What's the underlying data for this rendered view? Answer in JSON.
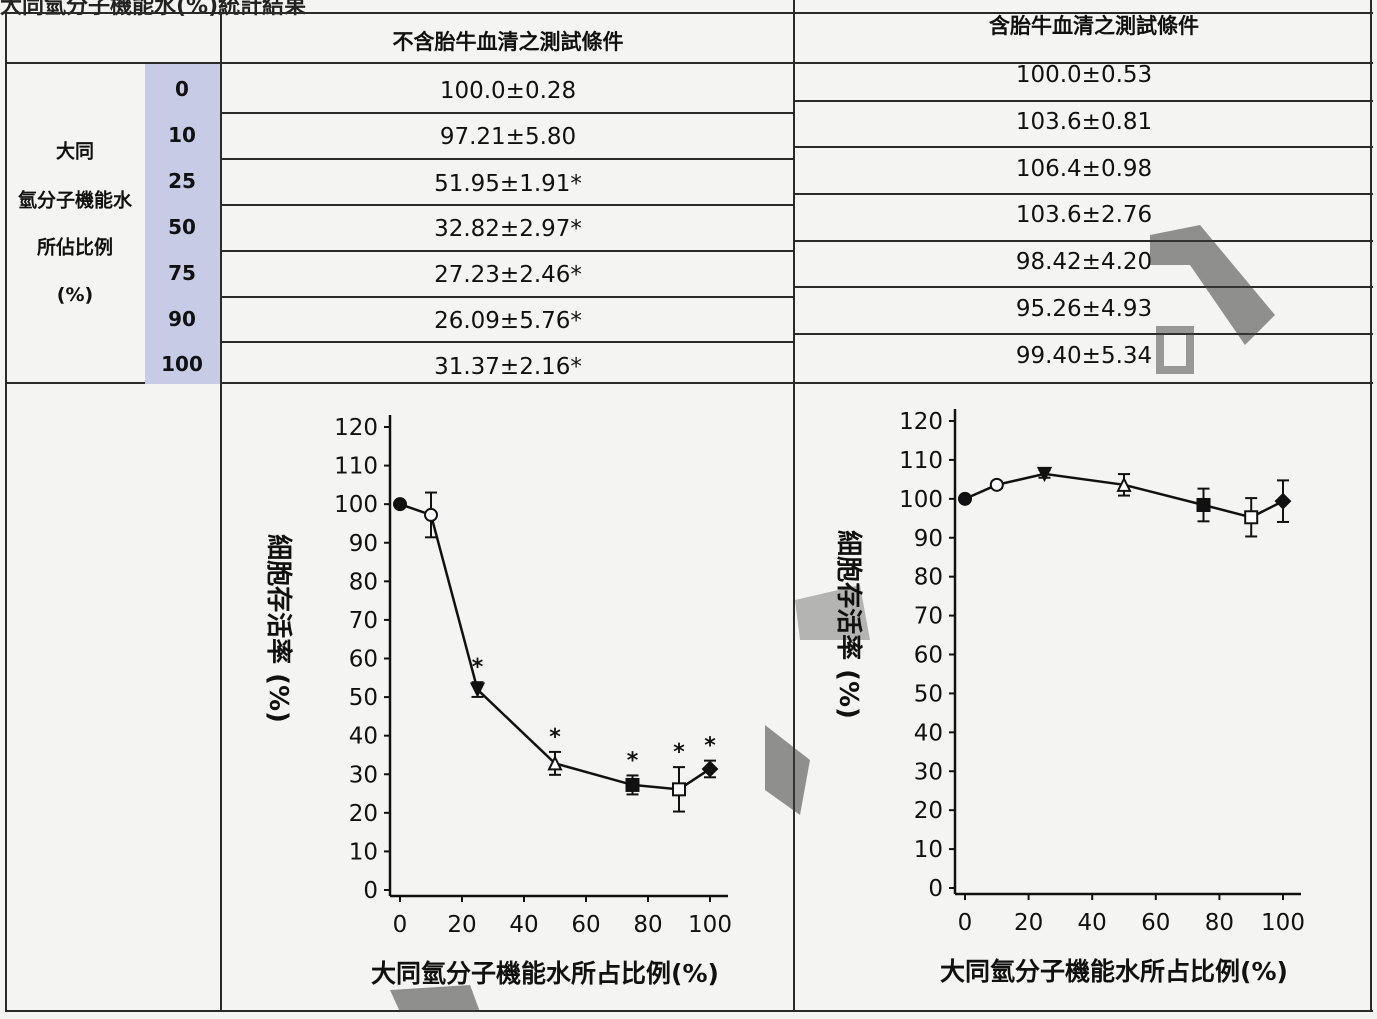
{
  "page_title": "大同氫分子機能水(%)統計結果",
  "table": {
    "col_headers": [
      "不含胎牛血清之測試條件",
      "含胎牛血清之測試條件"
    ],
    "row_label_lines": [
      "大同",
      "氫分子機能水",
      "所佔比例",
      "(%)"
    ],
    "concentrations": [
      "0",
      "10",
      "25",
      "50",
      "75",
      "90",
      "100"
    ],
    "without_fbs": [
      "100.0±0.28",
      "97.21±5.80",
      "51.95±1.91*",
      "32.82±2.97*",
      "27.23±2.46*",
      "26.09±5.76*",
      "31.37±2.16*"
    ],
    "with_fbs": [
      "100.0±0.53",
      "103.6±0.81",
      "106.4±0.98",
      "103.6±2.76",
      "98.42±4.20",
      "95.26±4.93",
      "99.40±5.34"
    ]
  },
  "chart_data": [
    {
      "type": "line",
      "title": "",
      "xlabel": "大同氫分子機能水所占比例(%)",
      "ylabel": "細胞存活率 (%)",
      "xlim": [
        0,
        100
      ],
      "ylim": [
        0,
        120
      ],
      "x_ticks": [
        0,
        20,
        40,
        60,
        80,
        100
      ],
      "y_ticks": [
        0,
        10,
        20,
        30,
        40,
        50,
        60,
        70,
        80,
        90,
        100,
        110,
        120
      ],
      "x": [
        0,
        10,
        25,
        50,
        75,
        90,
        100
      ],
      "y": [
        100.0,
        97.21,
        51.95,
        32.82,
        27.23,
        26.09,
        31.37
      ],
      "err": [
        0.28,
        5.8,
        1.91,
        2.97,
        2.46,
        5.76,
        2.16
      ],
      "markers": [
        "circle-filled",
        "circle-open",
        "triangle-down-filled",
        "triangle-up-open",
        "square-filled",
        "square-open",
        "diamond-filled"
      ],
      "significance_label": "*",
      "significant": [
        false,
        false,
        true,
        true,
        true,
        true,
        true
      ],
      "grid": false,
      "legend": "none"
    },
    {
      "type": "line",
      "title": "",
      "xlabel": "大同氫分子機能水所占比例(%)",
      "ylabel": "細胞存活率 (%)",
      "xlim": [
        0,
        100
      ],
      "ylim": [
        0,
        120
      ],
      "x_ticks": [
        0,
        20,
        40,
        60,
        80,
        100
      ],
      "y_ticks": [
        0,
        10,
        20,
        30,
        40,
        50,
        60,
        70,
        80,
        90,
        100,
        110,
        120
      ],
      "x": [
        0,
        10,
        25,
        50,
        75,
        90,
        100
      ],
      "y": [
        100.0,
        103.6,
        106.4,
        103.6,
        98.42,
        95.26,
        99.4
      ],
      "err": [
        0.53,
        0.81,
        0.98,
        2.76,
        4.2,
        4.93,
        5.34
      ],
      "markers": [
        "circle-filled",
        "circle-open",
        "triangle-down-filled",
        "triangle-up-open",
        "square-filled",
        "square-open",
        "diamond-filled"
      ],
      "significant": [
        false,
        false,
        false,
        false,
        false,
        false,
        false
      ],
      "grid": false,
      "legend": "none"
    }
  ],
  "colors": {
    "line": "#111111",
    "concentration_column": "#c7cbe6",
    "background": "#f4f4f2"
  }
}
